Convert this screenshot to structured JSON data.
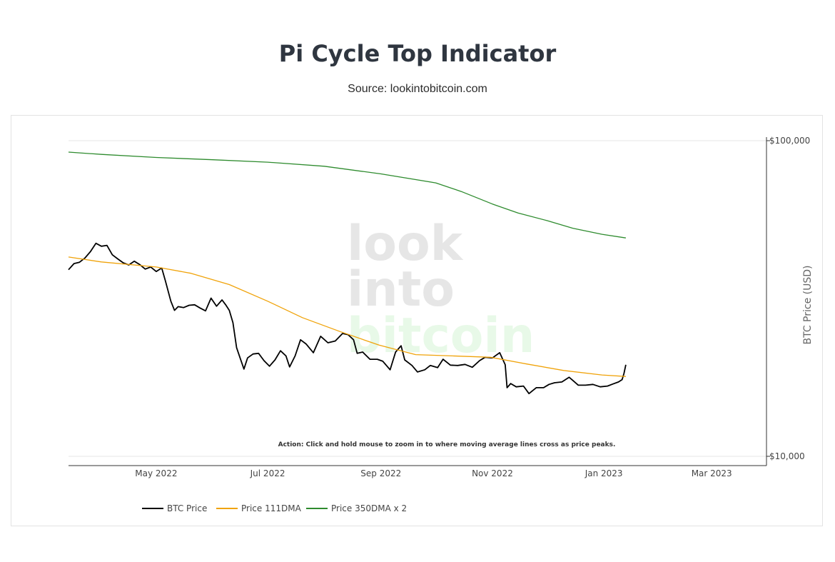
{
  "header": {
    "title": "Pi Cycle Top Indicator",
    "subtitle": "Source: lookintobitcoin.com"
  },
  "watermark": {
    "line1": "look",
    "line2": "into",
    "line3": "bitcoin",
    "color_gray": "#e6e6e6",
    "color_green": "#e8f9e8"
  },
  "chart_data": {
    "type": "line",
    "xaxis": {
      "range": [
        "2022-03-14",
        "2023-03-31"
      ],
      "ticks": [
        {
          "date": "2022-05-01",
          "label": "May 2022"
        },
        {
          "date": "2022-07-01",
          "label": "Jul 2022"
        },
        {
          "date": "2022-09-01",
          "label": "Sep 2022"
        },
        {
          "date": "2022-11-01",
          "label": "Nov 2022"
        },
        {
          "date": "2023-01-01",
          "label": "Jan 2023"
        },
        {
          "date": "2023-03-01",
          "label": "Mar 2023"
        }
      ]
    },
    "yaxis": {
      "title": "BTC Price (USD)",
      "scale": "log",
      "range": [
        10000,
        100000
      ],
      "side": "right",
      "ticks": [
        {
          "value": 10000,
          "label": "$10,000"
        },
        {
          "value": 100000,
          "label": "$100,000"
        }
      ]
    },
    "annotation": "Action: Click and hold mouse to zoom in to where moving average lines cross as price peaks.",
    "legend_position": "bottom-left",
    "series": [
      {
        "name": "BTC Price",
        "color": "#000000",
        "points": [
          [
            "2022-03-14",
            39000
          ],
          [
            "2022-03-17",
            40800
          ],
          [
            "2022-03-20",
            41200
          ],
          [
            "2022-03-23",
            42500
          ],
          [
            "2022-03-26",
            44500
          ],
          [
            "2022-03-29",
            47300
          ],
          [
            "2022-04-01",
            46300
          ],
          [
            "2022-04-04",
            46600
          ],
          [
            "2022-04-07",
            43500
          ],
          [
            "2022-04-10",
            42200
          ],
          [
            "2022-04-13",
            41000
          ],
          [
            "2022-04-16",
            40400
          ],
          [
            "2022-04-19",
            41500
          ],
          [
            "2022-04-22",
            40500
          ],
          [
            "2022-04-25",
            39200
          ],
          [
            "2022-04-28",
            39800
          ],
          [
            "2022-05-01",
            38500
          ],
          [
            "2022-05-04",
            39500
          ],
          [
            "2022-05-06",
            36000
          ],
          [
            "2022-05-09",
            31000
          ],
          [
            "2022-05-11",
            29000
          ],
          [
            "2022-05-13",
            29800
          ],
          [
            "2022-05-16",
            29600
          ],
          [
            "2022-05-19",
            30100
          ],
          [
            "2022-05-22",
            30200
          ],
          [
            "2022-05-25",
            29500
          ],
          [
            "2022-05-28",
            28900
          ],
          [
            "2022-05-31",
            31700
          ],
          [
            "2022-06-03",
            29900
          ],
          [
            "2022-06-06",
            31300
          ],
          [
            "2022-06-08",
            30200
          ],
          [
            "2022-06-10",
            29000
          ],
          [
            "2022-06-12",
            26500
          ],
          [
            "2022-06-14",
            22100
          ],
          [
            "2022-06-16",
            20400
          ],
          [
            "2022-06-18",
            18900
          ],
          [
            "2022-06-20",
            20500
          ],
          [
            "2022-06-23",
            21100
          ],
          [
            "2022-06-26",
            21200
          ],
          [
            "2022-06-29",
            20100
          ],
          [
            "2022-07-02",
            19300
          ],
          [
            "2022-07-05",
            20200
          ],
          [
            "2022-07-08",
            21600
          ],
          [
            "2022-07-11",
            20800
          ],
          [
            "2022-07-13",
            19200
          ],
          [
            "2022-07-16",
            20800
          ],
          [
            "2022-07-19",
            23400
          ],
          [
            "2022-07-22",
            22700
          ],
          [
            "2022-07-26",
            21300
          ],
          [
            "2022-07-30",
            24000
          ],
          [
            "2022-08-03",
            22900
          ],
          [
            "2022-08-07",
            23200
          ],
          [
            "2022-08-11",
            24500
          ],
          [
            "2022-08-14",
            24300
          ],
          [
            "2022-08-17",
            23400
          ],
          [
            "2022-08-19",
            21200
          ],
          [
            "2022-08-22",
            21400
          ],
          [
            "2022-08-26",
            20300
          ],
          [
            "2022-08-30",
            20300
          ],
          [
            "2022-09-02",
            20000
          ],
          [
            "2022-09-06",
            18800
          ],
          [
            "2022-09-09",
            21400
          ],
          [
            "2022-09-12",
            22400
          ],
          [
            "2022-09-14",
            20200
          ],
          [
            "2022-09-18",
            19400
          ],
          [
            "2022-09-21",
            18500
          ],
          [
            "2022-09-25",
            18800
          ],
          [
            "2022-09-28",
            19400
          ],
          [
            "2022-10-02",
            19100
          ],
          [
            "2022-10-05",
            20300
          ],
          [
            "2022-10-09",
            19450
          ],
          [
            "2022-10-13",
            19400
          ],
          [
            "2022-10-17",
            19550
          ],
          [
            "2022-10-21",
            19150
          ],
          [
            "2022-10-25",
            20100
          ],
          [
            "2022-10-28",
            20600
          ],
          [
            "2022-11-01",
            20500
          ],
          [
            "2022-11-05",
            21300
          ],
          [
            "2022-11-08",
            19500
          ],
          [
            "2022-11-09",
            16500
          ],
          [
            "2022-11-11",
            17000
          ],
          [
            "2022-11-14",
            16600
          ],
          [
            "2022-11-18",
            16700
          ],
          [
            "2022-11-21",
            15800
          ],
          [
            "2022-11-25",
            16500
          ],
          [
            "2022-11-29",
            16500
          ],
          [
            "2022-12-02",
            16900
          ],
          [
            "2022-12-05",
            17100
          ],
          [
            "2022-12-09",
            17200
          ],
          [
            "2022-12-13",
            17800
          ],
          [
            "2022-12-15",
            17400
          ],
          [
            "2022-12-18",
            16800
          ],
          [
            "2022-12-22",
            16800
          ],
          [
            "2022-12-26",
            16900
          ],
          [
            "2022-12-30",
            16600
          ],
          [
            "2023-01-03",
            16700
          ],
          [
            "2023-01-06",
            16950
          ],
          [
            "2023-01-09",
            17200
          ],
          [
            "2023-01-11",
            17500
          ],
          [
            "2023-01-12",
            18300
          ],
          [
            "2023-01-13",
            19500
          ]
        ]
      },
      {
        "name": "Price 111DMA",
        "color": "#f0a30a",
        "points": [
          [
            "2022-03-14",
            42800
          ],
          [
            "2022-04-01",
            41300
          ],
          [
            "2022-05-01",
            39800
          ],
          [
            "2022-05-20",
            38000
          ],
          [
            "2022-06-10",
            35000
          ],
          [
            "2022-07-01",
            31000
          ],
          [
            "2022-07-20",
            27500
          ],
          [
            "2022-08-10",
            24800
          ],
          [
            "2022-08-31",
            22500
          ],
          [
            "2022-09-20",
            21000
          ],
          [
            "2022-10-10",
            20800
          ],
          [
            "2022-10-31",
            20600
          ],
          [
            "2022-11-20",
            19600
          ],
          [
            "2022-12-10",
            18700
          ],
          [
            "2022-12-31",
            18100
          ],
          [
            "2023-01-13",
            17900
          ]
        ]
      },
      {
        "name": "Price 350DMA x 2",
        "color": "#2e8b2e",
        "points": [
          [
            "2022-03-14",
            92000
          ],
          [
            "2022-04-01",
            90500
          ],
          [
            "2022-05-01",
            88500
          ],
          [
            "2022-06-01",
            87000
          ],
          [
            "2022-07-01",
            85500
          ],
          [
            "2022-08-01",
            83000
          ],
          [
            "2022-09-01",
            78500
          ],
          [
            "2022-10-01",
            73500
          ],
          [
            "2022-10-15",
            69000
          ],
          [
            "2022-11-01",
            63000
          ],
          [
            "2022-11-15",
            59000
          ],
          [
            "2022-12-01",
            55800
          ],
          [
            "2022-12-15",
            52800
          ],
          [
            "2022-12-31",
            50500
          ],
          [
            "2023-01-13",
            49200
          ]
        ]
      }
    ]
  }
}
